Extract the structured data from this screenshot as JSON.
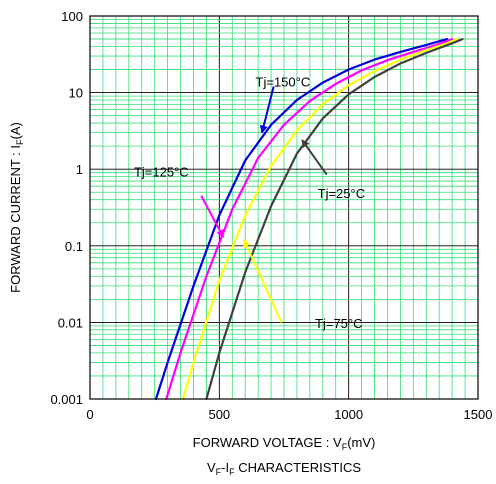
{
  "chart_data": {
    "type": "line",
    "x_scale": "linear",
    "y_scale": "log",
    "xlim": [
      0,
      1500
    ],
    "ylim": [
      0.001,
      100
    ],
    "x_ticks": [
      {
        "value": 0,
        "label": "0"
      },
      {
        "value": 500,
        "label": "500"
      },
      {
        "value": 1000,
        "label": "1000"
      },
      {
        "value": 1500,
        "label": "1500"
      }
    ],
    "y_ticks": [
      {
        "value": 0.001,
        "label": "0.001"
      },
      {
        "value": 0.01,
        "label": "0.01"
      },
      {
        "value": 0.1,
        "label": "0.1"
      },
      {
        "value": 1,
        "label": "1"
      },
      {
        "value": 10,
        "label": "10"
      },
      {
        "value": 100,
        "label": "100"
      }
    ],
    "xlabel": {
      "main": "FORWARD VOLTAGE : V",
      "sub": "F",
      "unit": "(mV)"
    },
    "ylabel": {
      "main": "FORWARD CURRENT : I",
      "sub": "F",
      "unit": "(A)"
    },
    "caption": {
      "a": "V",
      "a_sub": "F",
      "mid": "-I",
      "b_sub": "F",
      "tail": " CHARACTERISTICS"
    },
    "grid": true,
    "grid_color": "#33dd77",
    "series": [
      {
        "name": "Tj=150°C",
        "color": "#0000dd",
        "x": [
          255,
          300,
          400,
          500,
          600,
          700,
          800,
          900,
          1000,
          1100,
          1200,
          1300,
          1380
        ],
        "y": [
          0.001,
          0.003,
          0.03,
          0.25,
          1.3,
          3.8,
          8.0,
          13.5,
          20,
          27,
          34,
          42,
          50
        ]
      },
      {
        "name": "Tj=125°C",
        "color": "#ff00ff",
        "x": [
          295,
          350,
          450,
          550,
          650,
          750,
          850,
          950,
          1050,
          1150,
          1250,
          1340,
          1400
        ],
        "y": [
          0.001,
          0.004,
          0.04,
          0.3,
          1.4,
          3.8,
          7.8,
          13,
          19.5,
          26.5,
          34,
          42,
          50
        ]
      },
      {
        "name": "Tj=75°C",
        "color": "#ffff00",
        "x": [
          360,
          400,
          500,
          600,
          700,
          800,
          900,
          1000,
          1100,
          1200,
          1300,
          1380,
          1420
        ],
        "y": [
          0.001,
          0.003,
          0.035,
          0.25,
          1.1,
          3.2,
          7.0,
          12.5,
          19,
          27,
          36,
          44,
          50
        ]
      },
      {
        "name": "Tj=25°C",
        "color": "#404040",
        "x": [
          450,
          500,
          600,
          700,
          800,
          900,
          1000,
          1100,
          1200,
          1300,
          1400,
          1440
        ],
        "y": [
          0.001,
          0.004,
          0.045,
          0.33,
          1.6,
          4.6,
          9.5,
          16,
          24,
          33,
          44,
          50
        ]
      }
    ],
    "annotations": [
      {
        "text": "Tj=150°C",
        "series": "Tj=150°C",
        "label_x": 640,
        "label_y": 12,
        "arrow_from": [
          710,
          12
        ],
        "arrow_to": [
          665,
          3.0
        ]
      },
      {
        "text": "Tj=125°C",
        "series": "Tj=125°C",
        "label_x": 170,
        "label_y": 0.8,
        "arrow_from": [
          430,
          0.45
        ],
        "arrow_to": [
          515,
          0.13
        ]
      },
      {
        "text": "Tj=75°C",
        "series": "Tj=75°C",
        "label_x": 870,
        "label_y": 0.0085,
        "arrow_from": [
          740,
          0.01
        ],
        "arrow_to": [
          595,
          0.12
        ]
      },
      {
        "text": "Tj=25°C",
        "series": "Tj=25°C",
        "label_x": 880,
        "label_y": 0.42,
        "arrow_from": [
          915,
          0.85
        ],
        "arrow_to": [
          820,
          2.4
        ]
      }
    ]
  }
}
